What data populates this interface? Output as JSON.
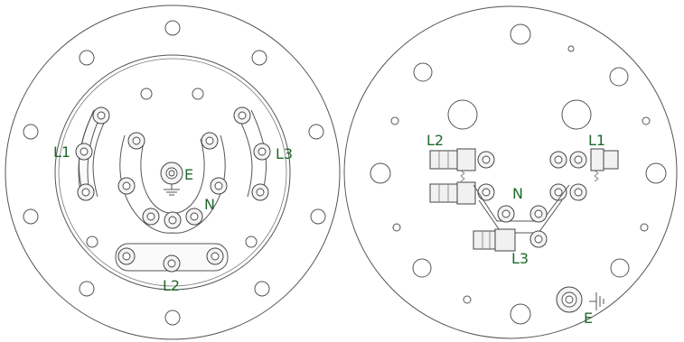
{
  "colors": {
    "label": "#1f6a2a",
    "line": "#555555",
    "background": "#ffffff"
  },
  "left_diagram": {
    "labels": {
      "l1": "L1",
      "l2": "L2",
      "l3": "L3",
      "n": "N",
      "e": "E"
    }
  },
  "right_diagram": {
    "labels": {
      "l1": "L1",
      "l2": "L2",
      "l3": "L3",
      "n": "N",
      "e": "E"
    }
  },
  "icons": [
    "ground-symbol-icon",
    "ground-symbol-icon"
  ]
}
